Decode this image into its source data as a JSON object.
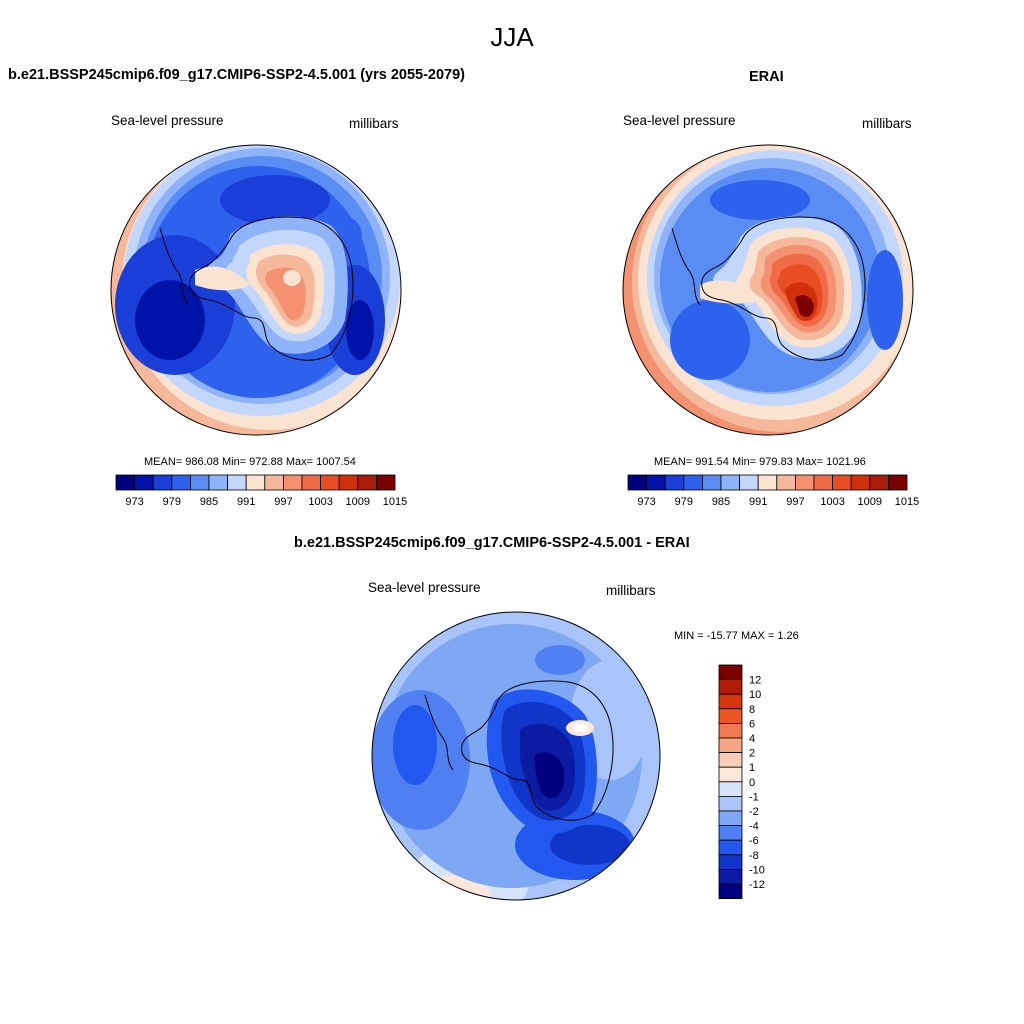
{
  "title": "JJA",
  "colors": {
    "slp": [
      "#000080",
      "#0013a8",
      "#1a3ed8",
      "#2e62ee",
      "#5a8df3",
      "#8fb3f8",
      "#c3d6fb",
      "#fbe3d2",
      "#f6b89a",
      "#f39170",
      "#f06c48",
      "#e94d24",
      "#d1300d",
      "#a81c0a",
      "#7d0000"
    ],
    "diff": [
      "#7b0000",
      "#b01c08",
      "#d6350e",
      "#ee5324",
      "#f07a52",
      "#f5a584",
      "#f8cdb8",
      "#fde7da",
      "#d7e3fb",
      "#a9c4f8",
      "#7ea8f3",
      "#4f7ff0",
      "#2257f0",
      "#0f36c8",
      "#0b1ca3",
      "#000080"
    ]
  },
  "panels": [
    {
      "id": "model",
      "title": "b.e21.BSSP245cmip6.f09_g17.CMIP6-SSP2-4.5.001 (yrs 2055-2079)",
      "left_label": "Sea-level pressure",
      "right_label": "millibars",
      "stats": "MEAN= 986.08  Min= 972.88  Max= 1007.54",
      "colorbar_ticks": [
        "973",
        "979",
        "985",
        "991",
        "997",
        "1003",
        "1009",
        "1015"
      ]
    },
    {
      "id": "obs",
      "title": "ERAI",
      "left_label": "Sea-level pressure",
      "right_label": "millibars",
      "stats": "MEAN= 991.54  Min= 979.83  Max= 1021.96",
      "colorbar_ticks": [
        "973",
        "979",
        "985",
        "991",
        "997",
        "1003",
        "1009",
        "1015"
      ]
    },
    {
      "id": "diff",
      "title": "b.e21.BSSP245cmip6.f09_g17.CMIP6-SSP2-4.5.001 - ERAI",
      "left_label": "Sea-level pressure",
      "right_label": "millibars",
      "stats": "MIN = -15.77 MAX =   1.26",
      "colorbar_ticks": [
        "12",
        "10",
        "8",
        "6",
        "4",
        "2",
        "1",
        "0",
        "-1",
        "-2",
        "-4",
        "-6",
        "-8",
        "-10",
        "-12"
      ]
    }
  ]
}
